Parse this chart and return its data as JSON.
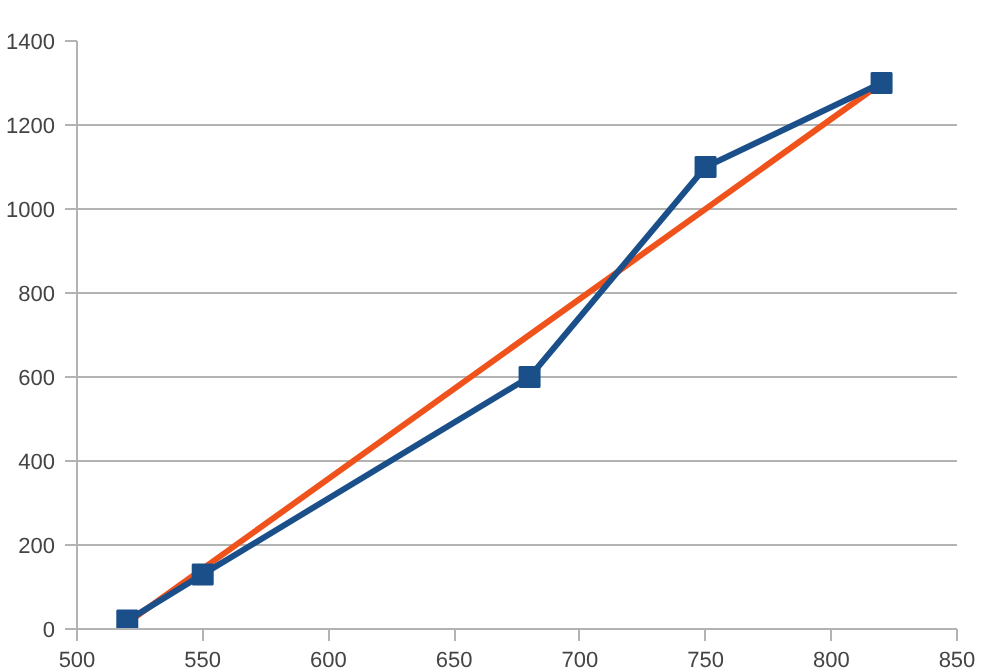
{
  "chart_data": {
    "type": "line",
    "xlim": [
      500,
      850
    ],
    "xticks": [
      500,
      550,
      600,
      650,
      700,
      750,
      800,
      850
    ],
    "ylim": [
      0,
      1400
    ],
    "yticks": [
      0,
      200,
      400,
      600,
      800,
      1000,
      1200,
      1400
    ],
    "grid": "y",
    "line_style": "solid",
    "series": [
      {
        "color": "#f0521c",
        "x": [
          520,
          820
        ],
        "values": [
          15,
          1300
        ],
        "marker": "none"
      },
      {
        "color": "#1a4f8a",
        "x": [
          520,
          550,
          680,
          750,
          820
        ],
        "values": [
          20,
          130,
          600,
          1100,
          1300
        ],
        "marker": "square"
      }
    ]
  }
}
